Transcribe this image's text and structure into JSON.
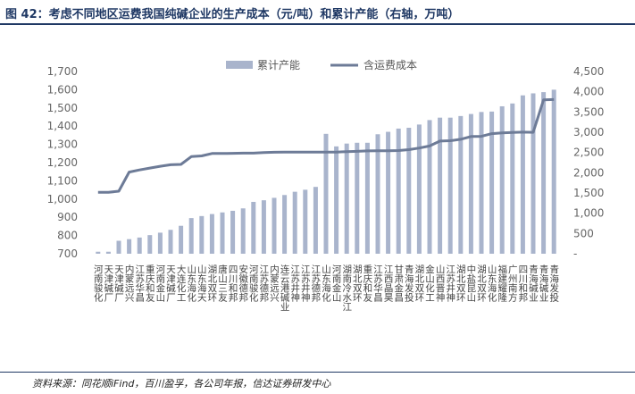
{
  "title": "图 42：考虑不同地区运费我国纯碱企业的生产成本（元/吨）和累计产能（右轴，万吨）",
  "source": "资料来源：同花顺iFind，百川盈孚，各公司年报，信达证券研发中心",
  "colors": {
    "bar": "#a9b4cc",
    "line": "#6d7b97",
    "title": "#1f3864"
  },
  "chart_data": {
    "type": "bar+line",
    "categories": [
      "天津碱厂",
      "天津碱厂",
      "江苏华昌",
      "唐山三友",
      "山东海化",
      "山东海化",
      "连云港碱业",
      "山东海天",
      "江苏德邦",
      "湖北双环",
      "四川和邦",
      "湖北双环",
      "湖北双环",
      "河南金山",
      "四川和邦",
      "河南骏化",
      "安徽德邦",
      "内蒙远兴",
      "江苏井神",
      "江苏井神",
      "江苏德邦",
      "江西晶昊",
      "河南金山",
      "山东海化",
      "河南骏化",
      "河南骏化",
      "湖北双环",
      "湖北双环",
      "重庆和友",
      "重庆和友",
      "重庆和友",
      "江苏华昌",
      "青海碱业",
      "青海碱业",
      "湖北双环",
      "江苏井神",
      "江苏德邦",
      "广西柳化",
      "内蒙远兴",
      "江苏德邦",
      "山东海化",
      "广州南方碱业",
      "福建耀隆",
      "青海发投",
      "青海发投"
    ],
    "x_labels_raw": [
      "河南骏化",
      "天津碱厂",
      "天津碱厂",
      "内蒙远兴",
      "江苏华昌",
      "重庆和友",
      "河南金山",
      "天津碱厂",
      "大连化工",
      "山东海化",
      "山东海天",
      "湖北双环",
      "唐山三友",
      "四川和邦",
      "安徽德邦",
      "河南骏化",
      "江苏德邦",
      "内蒙远兴",
      "连云港碱业",
      "江苏井神",
      "江苏井神",
      "江苏德邦",
      "山东海化",
      "河南金山",
      "湖南冷水江",
      "湖北双环",
      "重庆和友",
      "江苏华昌",
      "江西晶昊",
      "甘肃金昌",
      "青海发投",
      "湖北双环",
      "金山化工",
      "山西晋神",
      "江苏井神",
      "湖北双环",
      "中盐昆山",
      "湖北双环",
      "山东海化",
      "福建耀隆",
      "广州南方",
      "四川和邦",
      "青海碱业",
      "青海碱业",
      "青海发投"
    ],
    "series": [
      {
        "name": "累计产能",
        "axis": "right",
        "type": "bar",
        "values": [
          50,
          50,
          320,
          360,
          400,
          460,
          520,
          590,
          690,
          880,
          930,
          980,
          1020,
          1060,
          1120,
          1280,
          1320,
          1380,
          1450,
          1530,
          1580,
          1650,
          2960,
          2650,
          2720,
          2740,
          2740,
          2950,
          3010,
          3090,
          3110,
          3190,
          3300,
          3360,
          3360,
          3400,
          3450,
          3500,
          3510,
          3640,
          3710,
          3910,
          3960,
          3990,
          4050
        ]
      },
      {
        "name": "含运费成本",
        "axis": "left",
        "type": "line",
        "values": [
          1037,
          1037,
          1043,
          1148,
          1160,
          1170,
          1180,
          1188,
          1190,
          1233,
          1237,
          1250,
          1250,
          1251,
          1252,
          1252,
          1255,
          1257,
          1258,
          1258,
          1258,
          1258,
          1258,
          1258,
          1260,
          1262,
          1264,
          1265,
          1265,
          1266,
          1271,
          1280,
          1291,
          1318,
          1320,
          1328,
          1343,
          1344,
          1359,
          1363,
          1365,
          1367,
          1366,
          1544,
          1546
        ]
      }
    ],
    "y_left": {
      "min": 700,
      "max": 1700,
      "ticks": [
        "700",
        "800",
        "900",
        "1,000",
        "1,100",
        "1,200",
        "1,300",
        "1,400",
        "1,500",
        "1,600",
        "1,700"
      ]
    },
    "y_right": {
      "min": 0,
      "max": 4500,
      "ticks": [
        "-",
        "500",
        "1,000",
        "1,500",
        "2,000",
        "2,500",
        "3,000",
        "3,500",
        "4,000",
        "4,500"
      ]
    },
    "legend": {
      "position": "top-center",
      "items": [
        "累计产能",
        "含运费成本"
      ]
    },
    "grid": false
  }
}
